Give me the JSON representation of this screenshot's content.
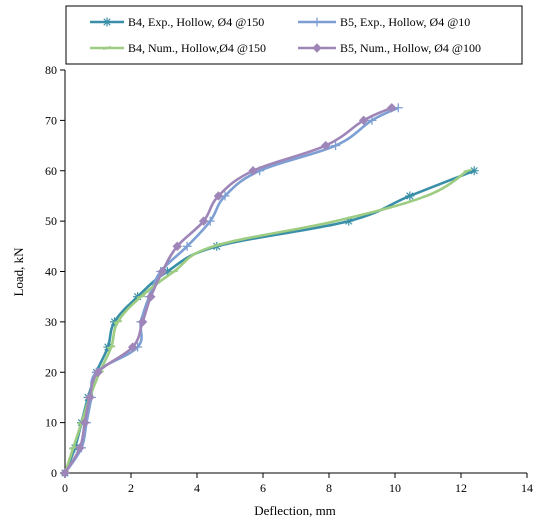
{
  "chart_data": {
    "type": "line",
    "xlabel": "Deflection, mm",
    "ylabel": "Load, kN",
    "xlim": [
      0,
      14
    ],
    "ylim": [
      0,
      80
    ],
    "xticks": [
      0,
      2,
      4,
      6,
      8,
      10,
      12,
      14
    ],
    "yticks": [
      0,
      10,
      20,
      30,
      40,
      50,
      60,
      70,
      80
    ],
    "grid": false,
    "legend_position": "top",
    "series": [
      {
        "name": "B4, Exp., Hollow, Ø4 @150",
        "color": "#3a8fa8",
        "marker": "asterisk",
        "points": [
          [
            0,
            0
          ],
          [
            0.3,
            5
          ],
          [
            0.5,
            10
          ],
          [
            0.7,
            15
          ],
          [
            0.95,
            20
          ],
          [
            1.3,
            25
          ],
          [
            1.5,
            30
          ],
          [
            2.2,
            35
          ],
          [
            3.1,
            40
          ],
          [
            4.6,
            45
          ],
          [
            8.6,
            50
          ],
          [
            10.45,
            55
          ],
          [
            12.4,
            60
          ]
        ]
      },
      {
        "name": "B5, Exp., Hollow, Ø4 @10",
        "color": "#7e9fd3",
        "marker": "plus",
        "points": [
          [
            0,
            0
          ],
          [
            0.5,
            5
          ],
          [
            0.65,
            10
          ],
          [
            0.8,
            15
          ],
          [
            0.95,
            20
          ],
          [
            2.2,
            25
          ],
          [
            2.3,
            30
          ],
          [
            2.55,
            35
          ],
          [
            2.9,
            40
          ],
          [
            3.7,
            45
          ],
          [
            4.4,
            50
          ],
          [
            4.85,
            55
          ],
          [
            5.9,
            60
          ],
          [
            8.2,
            65
          ],
          [
            9.3,
            70
          ],
          [
            10.1,
            72.5
          ]
        ]
      },
      {
        "name": "B4, Num., Hollow,Ø4 @150",
        "color": "#9dcc82",
        "marker": "dash",
        "points": [
          [
            0,
            0
          ],
          [
            0.25,
            5
          ],
          [
            0.5,
            10
          ],
          [
            0.75,
            15
          ],
          [
            1.05,
            20
          ],
          [
            1.4,
            25
          ],
          [
            1.6,
            30
          ],
          [
            2.3,
            35
          ],
          [
            3.3,
            40
          ],
          [
            4.5,
            45
          ],
          [
            8.2,
            50
          ],
          [
            10.95,
            55
          ],
          [
            12.2,
            60
          ]
        ]
      },
      {
        "name": "B5, Num., Hollow, Ø4 @100",
        "color": "#9e86b8",
        "marker": "diamond",
        "points": [
          [
            0,
            0
          ],
          [
            0.45,
            5
          ],
          [
            0.6,
            10
          ],
          [
            0.75,
            15
          ],
          [
            1.0,
            20
          ],
          [
            2.05,
            25
          ],
          [
            2.35,
            30
          ],
          [
            2.6,
            35
          ],
          [
            2.95,
            40
          ],
          [
            3.4,
            45
          ],
          [
            4.2,
            50
          ],
          [
            4.65,
            55
          ],
          [
            5.7,
            60
          ],
          [
            7.9,
            65
          ],
          [
            9.05,
            70
          ],
          [
            9.9,
            72.5
          ]
        ]
      }
    ]
  }
}
